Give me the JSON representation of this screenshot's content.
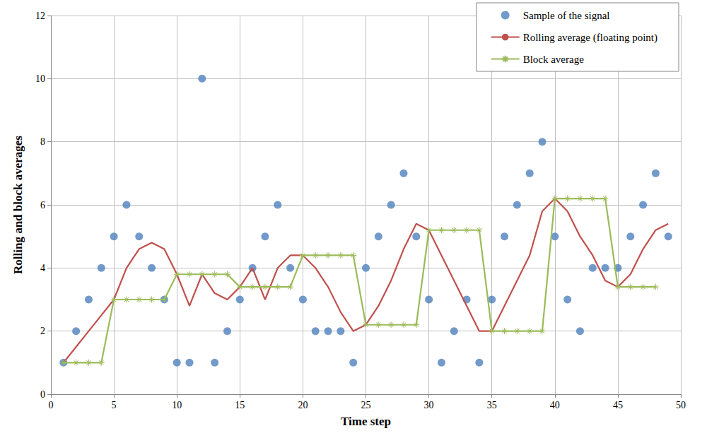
{
  "chart_data": {
    "type": "line",
    "x_label": "Time step",
    "y_label": "Rolling and block averages",
    "x": [
      1,
      2,
      3,
      4,
      5,
      6,
      7,
      8,
      9,
      10,
      11,
      12,
      13,
      14,
      15,
      16,
      17,
      18,
      19,
      20,
      21,
      22,
      23,
      24,
      25,
      26,
      27,
      28,
      29,
      30,
      31,
      32,
      33,
      34,
      35,
      36,
      37,
      38,
      39,
      40,
      41,
      42,
      43,
      44,
      45,
      46,
      47,
      48,
      49
    ],
    "series": [
      {
        "name": "Sample of the signal",
        "type": "scatter",
        "color": "#4f81bd",
        "marker": "circle",
        "values": [
          1,
          2,
          3,
          4,
          5,
          6,
          5,
          4,
          3,
          1,
          1,
          10,
          1,
          2,
          3,
          4,
          5,
          6,
          4,
          3,
          2,
          2,
          2,
          1,
          4,
          5,
          6,
          7,
          5,
          3,
          1,
          2,
          3,
          1,
          3,
          5,
          6,
          7,
          8,
          5,
          3,
          2,
          4,
          4,
          4,
          5,
          6,
          7,
          5
        ]
      },
      {
        "name": "Rolling average (floating point)",
        "type": "line",
        "color": "#c0504d",
        "marker": "none",
        "line_style": "solid",
        "values": [
          1,
          1.5,
          2,
          2.5,
          3,
          4,
          4.6,
          4.8,
          4.6,
          3.8,
          2.8,
          3.8,
          3.2,
          3,
          3.4,
          4,
          3,
          4,
          4.4,
          4.4,
          4,
          3.4,
          2.6,
          2,
          2.2,
          2.8,
          3.6,
          4.6,
          5.4,
          5.2,
          4.4,
          3.6,
          2.8,
          2,
          2,
          2.8,
          3.6,
          4.4,
          5.8,
          6.2,
          5.8,
          5,
          4.4,
          3.6,
          3.4,
          3.8,
          4.6,
          5.2,
          5.4
        ]
      },
      {
        "name": "Block average",
        "type": "line",
        "color": "#9bbb59",
        "marker": "asterisk",
        "line_style": "solid",
        "values": [
          1,
          1,
          1,
          1,
          3,
          3,
          3,
          3,
          3,
          3.8,
          3.8,
          3.8,
          3.8,
          3.8,
          3.4,
          3.4,
          3.4,
          3.4,
          3.4,
          4.4,
          4.4,
          4.4,
          4.4,
          4.4,
          2.2,
          2.2,
          2.2,
          2.2,
          2.2,
          5.2,
          5.2,
          5.2,
          5.2,
          5.2,
          2,
          2,
          2,
          2,
          2,
          6.2,
          6.2,
          6.2,
          6.2,
          6.2,
          3.4,
          3.4,
          3.4,
          3.4,
          null
        ]
      }
    ],
    "xlim": [
      0,
      50
    ],
    "xticks": [
      0,
      5,
      10,
      15,
      20,
      25,
      30,
      35,
      40,
      45,
      50
    ],
    "ylim": [
      0,
      12
    ],
    "yticks": [
      0,
      2,
      4,
      6,
      8,
      10,
      12
    ],
    "grid": true,
    "legend": "top-right"
  }
}
